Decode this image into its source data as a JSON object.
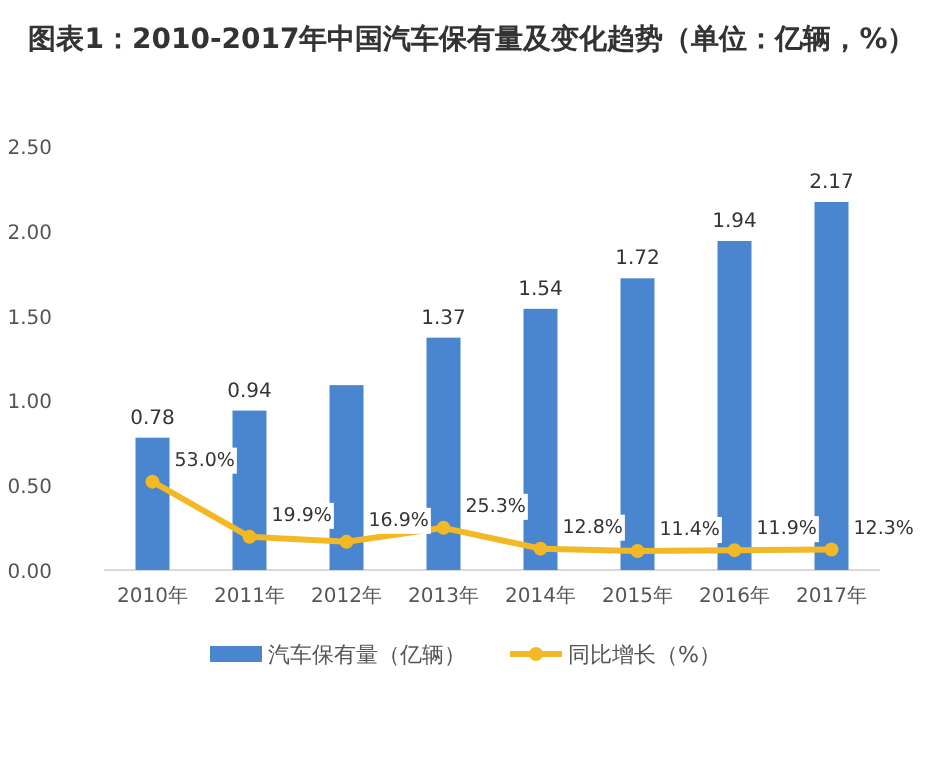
{
  "chart_data": {
    "type": "bar",
    "title": "图表1：2010-2017年中国汽车保有量及变化趋势（单位：亿辆，%）",
    "categories": [
      "2010年",
      "2011年",
      "2012年",
      "2013年",
      "2014年",
      "2015年",
      "2016年",
      "2017年"
    ],
    "ylim": [
      0,
      2.5
    ],
    "yticks": [
      {
        "value": 0,
        "label": "0.00"
      },
      {
        "value": 0.5,
        "label": "0.50"
      },
      {
        "value": 1,
        "label": "1.00"
      },
      {
        "value": 1.5,
        "label": "1.50"
      },
      {
        "value": 2,
        "label": "2.00"
      },
      {
        "value": 2.5,
        "label": "2.50"
      }
    ],
    "series": [
      {
        "name": "汽车保有量（亿辆）",
        "color": "#4a86d0",
        "values": [
          0.78,
          0.94,
          1.09,
          1.37,
          1.54,
          1.72,
          1.94,
          2.17
        ],
        "value_labels": [
          "0.78",
          "0.94",
          null,
          "1.37",
          "1.54",
          "1.72",
          "1.94",
          "2.17"
        ]
      },
      {
        "name": "同比增长（%）",
        "type": "line",
        "axis": "y2",
        "color": "#f2b925",
        "values": [
          53.0,
          19.9,
          16.9,
          25.3,
          12.8,
          11.4,
          11.9,
          12.3
        ],
        "value_labels": [
          "53.0%",
          "19.9%",
          "16.9%",
          "25.3%",
          "12.8%",
          "11.4%",
          "11.9%",
          "12.3%"
        ]
      }
    ],
    "marker": "circle",
    "legend": "bottom",
    "grid": false
  }
}
